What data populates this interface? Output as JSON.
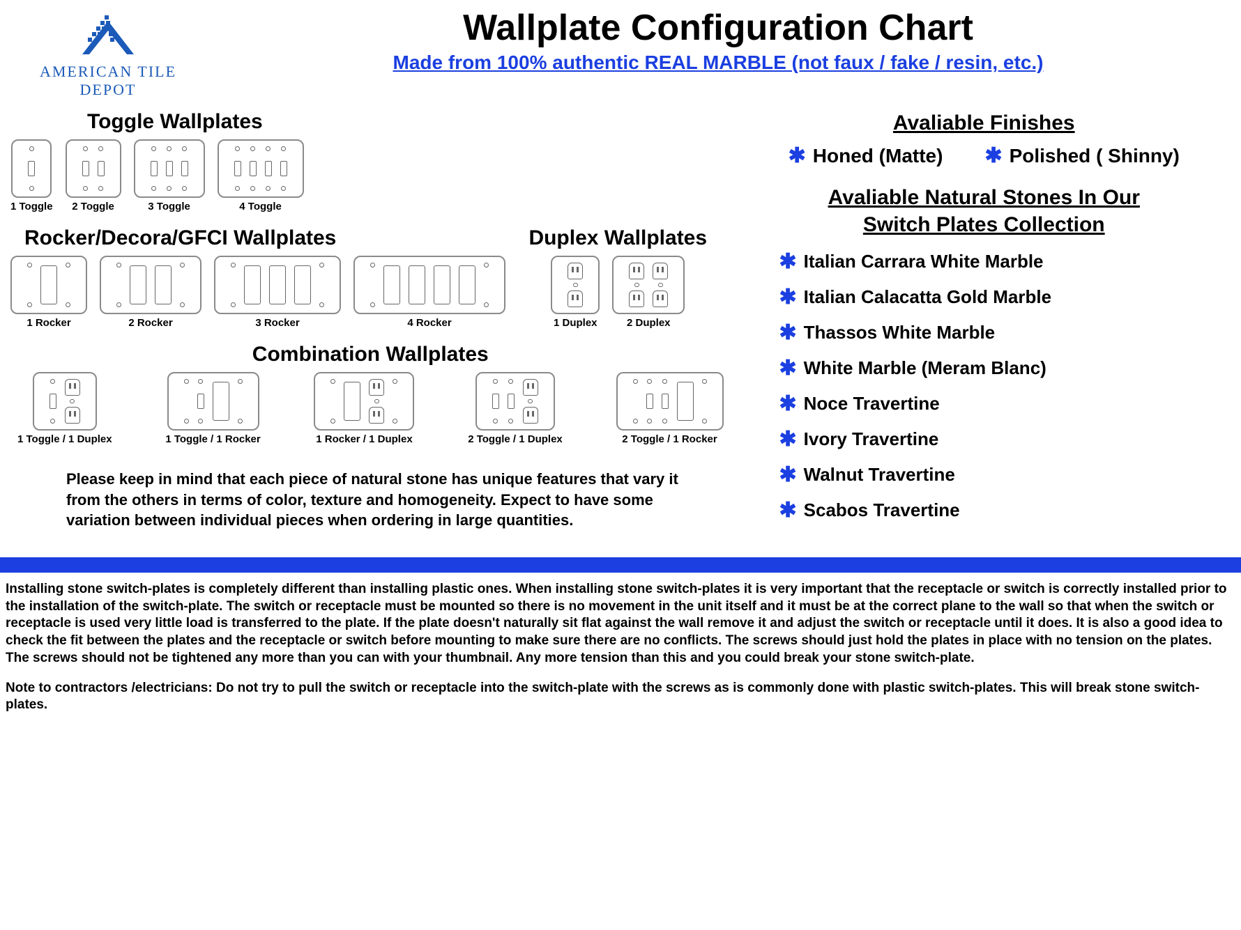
{
  "colors": {
    "accent": "#1b3fe0",
    "logoBlue": "#1b5ab8",
    "border": "#8a8a8a",
    "text": "#000000",
    "bg": "#ffffff"
  },
  "logo": {
    "brand": "AMERICAN TILE DEPOT"
  },
  "title": "Wallplate Configuration Chart",
  "subtitle": "Made from 100% authentic REAL MARBLE (not faux / fake / resin, etc.)",
  "groups": {
    "toggle": {
      "title": "Toggle Wallplates",
      "items": [
        {
          "label": "1 Toggle",
          "gangs": [
            "toggle"
          ]
        },
        {
          "label": "2 Toggle",
          "gangs": [
            "toggle",
            "toggle"
          ]
        },
        {
          "label": "3 Toggle",
          "gangs": [
            "toggle",
            "toggle",
            "toggle"
          ]
        },
        {
          "label": "4 Toggle",
          "gangs": [
            "toggle",
            "toggle",
            "toggle",
            "toggle"
          ]
        }
      ]
    },
    "rocker": {
      "title": "Rocker/Decora/GFCI Wallplates",
      "items": [
        {
          "label": "1 Rocker",
          "gangs": [
            "rocker"
          ]
        },
        {
          "label": "2 Rocker",
          "gangs": [
            "rocker",
            "rocker"
          ]
        },
        {
          "label": "3 Rocker",
          "gangs": [
            "rocker",
            "rocker",
            "rocker"
          ]
        },
        {
          "label": "4 Rocker",
          "gangs": [
            "rocker",
            "rocker",
            "rocker",
            "rocker"
          ]
        }
      ]
    },
    "duplex": {
      "title": "Duplex Wallplates",
      "items": [
        {
          "label": "1 Duplex",
          "gangs": [
            "duplex"
          ]
        },
        {
          "label": "2 Duplex",
          "gangs": [
            "duplex",
            "duplex"
          ]
        }
      ]
    },
    "combo": {
      "title": "Combination Wallplates",
      "items": [
        {
          "label": "1 Toggle / 1 Duplex",
          "gangs": [
            "toggle",
            "duplex"
          ]
        },
        {
          "label": "1 Toggle / 1 Rocker",
          "gangs": [
            "toggle",
            "rocker"
          ]
        },
        {
          "label": "1 Rocker / 1 Duplex",
          "gangs": [
            "rocker",
            "duplex"
          ]
        },
        {
          "label": "2 Toggle / 1 Duplex",
          "gangs": [
            "toggle",
            "toggle",
            "duplex"
          ]
        },
        {
          "label": "2 Toggle / 1 Rocker",
          "gangs": [
            "toggle",
            "toggle",
            "rocker"
          ]
        }
      ]
    }
  },
  "finishes": {
    "title": "Avaliable Finishes",
    "items": [
      "Honed (Matte)",
      "Polished ( Shinny)"
    ]
  },
  "stones": {
    "title_line1": "Avaliable Natural Stones In Our",
    "title_line2": "Switch Plates Collection",
    "items": [
      "Italian Carrara White Marble",
      "Italian Calacatta Gold Marble",
      "Thassos White Marble",
      "White Marble (Meram Blanc)",
      "Noce Travertine",
      "Ivory Travertine",
      "Walnut Travertine",
      "Scabos Travertine"
    ]
  },
  "disclaimer": "Please keep in mind that each piece of natural stone has unique features that vary it from the others in terms of color, texture and homogeneity. Expect to have some variation between individual pieces when ordering in large quantities.",
  "install": "Installing stone switch-plates is completely different than installing plastic ones. When installing stone switch-plates it is very important that the receptacle or switch is correctly installed prior to the installation of the switch-plate. The switch or receptacle must be mounted so there is no movement in the unit itself and it must be at the correct plane to the wall so that when the switch or receptacle is used very little load is transferred to the plate. If the plate doesn't naturally sit flat against the wall remove it and adjust the switch or receptacle until it does. It is also a good idea to check the fit between the plates and the receptacle or switch before mounting to make sure there are no conflicts. The screws should just hold the plates in place with no tension on the plates. The screws should not be tightened any more than you can with your thumbnail. Any more tension than this and you could break your stone switch-plate.",
  "install_note": "Note to contractors /electricians: Do not try to pull the switch or receptacle into the switch-plate with the screws as is commonly done with plastic switch-plates. This will break stone switch-plates."
}
